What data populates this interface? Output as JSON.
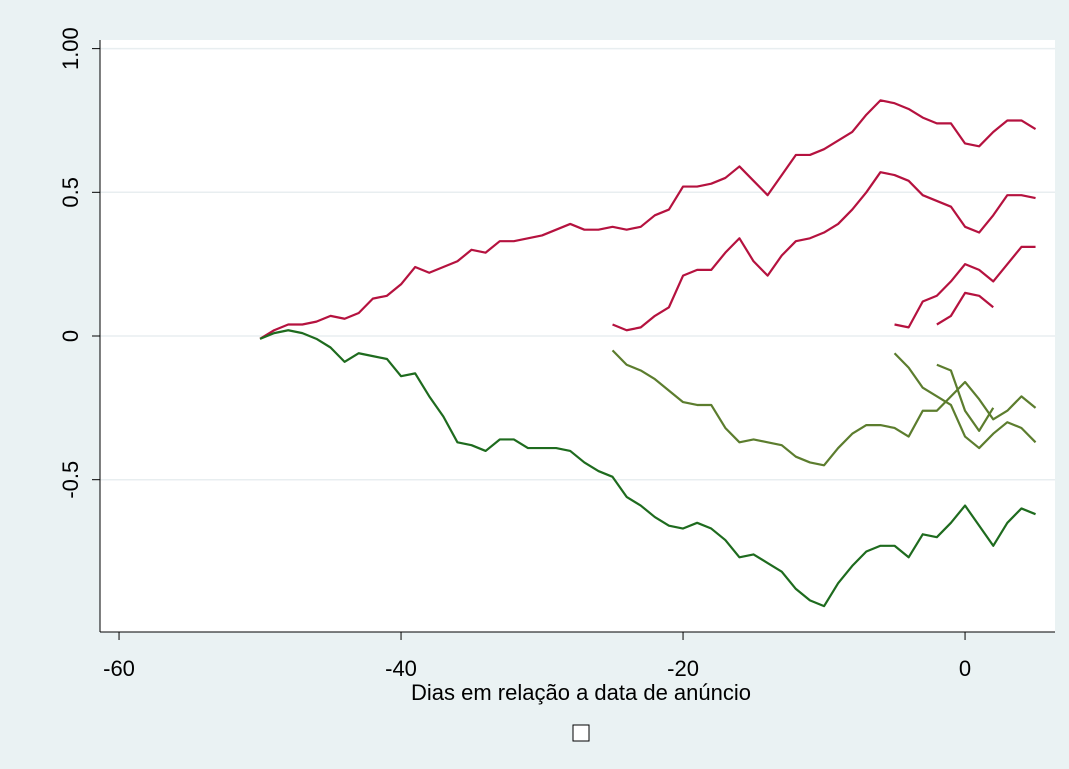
{
  "chart_data": {
    "type": "line",
    "x_label": "Dias em relação a data de anúncio",
    "xlim": [
      -61.35,
      6.38
    ],
    "ylim": [
      -1.03,
      1.03
    ],
    "xticks": [
      -60,
      -40,
      -20,
      0
    ],
    "yticks": [
      -0.5,
      0,
      0.5,
      {
        "value": 1,
        "label": "1.00"
      }
    ],
    "grid": true,
    "series": [
      {
        "color": "#b5123f",
        "x": [
          -50,
          -49,
          -48,
          -47,
          -46,
          -45,
          -44,
          -43,
          -42,
          -41,
          -40,
          -39,
          -38,
          -37,
          -36,
          -35,
          -34,
          -33,
          -32,
          -31,
          -30,
          -29,
          -28,
          -27,
          -26,
          -25,
          -24,
          -23,
          -22,
          -21,
          -20,
          -19,
          -18,
          -17,
          -16,
          -15,
          -14,
          -13,
          -12,
          -11,
          -10,
          -9,
          -8,
          -7,
          -6,
          -5,
          -4,
          -3,
          -2,
          -1,
          0,
          1,
          2,
          3,
          4,
          5
        ],
        "values": [
          -0.01,
          0.02,
          0.04,
          0.04,
          0.05,
          0.07,
          0.06,
          0.08,
          0.13,
          0.14,
          0.18,
          0.24,
          0.22,
          0.24,
          0.26,
          0.3,
          0.29,
          0.33,
          0.33,
          0.34,
          0.35,
          0.37,
          0.39,
          0.37,
          0.37,
          0.38,
          0.37,
          0.38,
          0.42,
          0.44,
          0.52,
          0.52,
          0.53,
          0.55,
          0.59,
          0.54,
          0.49,
          0.56,
          0.63,
          0.63,
          0.65,
          0.68,
          0.71,
          0.77,
          0.82,
          0.81,
          0.79,
          0.76,
          0.74,
          0.74,
          0.67,
          0.66,
          0.71,
          0.75,
          0.75,
          0.72
        ]
      },
      {
        "color": "#b5123f",
        "x": [
          -25,
          -24,
          -23,
          -22,
          -21,
          -20,
          -19,
          -18,
          -17,
          -16,
          -15,
          -14,
          -13,
          -12,
          -11,
          -10,
          -9,
          -8,
          -7,
          -6,
          -5,
          -4,
          -3,
          -2,
          -1,
          0,
          1,
          2,
          3,
          4,
          5
        ],
        "values": [
          0.04,
          0.02,
          0.03,
          0.07,
          0.1,
          0.21,
          0.23,
          0.23,
          0.29,
          0.34,
          0.26,
          0.21,
          0.28,
          0.33,
          0.34,
          0.36,
          0.39,
          0.44,
          0.5,
          0.57,
          0.56,
          0.54,
          0.49,
          0.47,
          0.45,
          0.38,
          0.36,
          0.42,
          0.49,
          0.49,
          0.48
        ]
      },
      {
        "color": "#b5123f",
        "x": [
          -5,
          -4,
          -3,
          -2,
          -1,
          0,
          1,
          2,
          3,
          4,
          5
        ],
        "values": [
          0.04,
          0.03,
          0.12,
          0.14,
          0.19,
          0.25,
          0.23,
          0.19,
          0.25,
          0.31,
          0.31
        ]
      },
      {
        "color": "#b5123f",
        "x": [
          -2,
          -1,
          0,
          1,
          2
        ],
        "values": [
          0.04,
          0.07,
          0.15,
          0.14,
          0.1
        ]
      },
      {
        "color": "#1e6b1e",
        "x": [
          -50,
          -49,
          -48,
          -47,
          -46,
          -45,
          -44,
          -43,
          -42,
          -41,
          -40,
          -39,
          -38,
          -37,
          -36,
          -35,
          -34,
          -33,
          -32,
          -31,
          -30,
          -29,
          -28,
          -27,
          -26,
          -25,
          -24,
          -23,
          -22,
          -21,
          -20,
          -19,
          -18,
          -17,
          -16,
          -15,
          -14,
          -13,
          -12,
          -11,
          -10,
          -9,
          -8,
          -7,
          -6,
          -5,
          -4,
          -3,
          -2,
          -1,
          0,
          1,
          2,
          3,
          4,
          5
        ],
        "values": [
          -0.01,
          0.01,
          0.02,
          0.01,
          -0.01,
          -0.04,
          -0.09,
          -0.06,
          -0.07,
          -0.08,
          -0.14,
          -0.13,
          -0.21,
          -0.28,
          -0.37,
          -0.38,
          -0.4,
          -0.36,
          -0.36,
          -0.39,
          -0.39,
          -0.39,
          -0.4,
          -0.44,
          -0.47,
          -0.49,
          -0.56,
          -0.59,
          -0.63,
          -0.66,
          -0.67,
          -0.65,
          -0.67,
          -0.71,
          -0.77,
          -0.76,
          -0.79,
          -0.82,
          -0.88,
          -0.92,
          -0.94,
          -0.86,
          -0.8,
          -0.75,
          -0.73,
          -0.73,
          -0.77,
          -0.69,
          -0.7,
          -0.65,
          -0.59,
          -0.66,
          -0.73,
          -0.65,
          -0.6,
          -0.62
        ]
      },
      {
        "color": "#5c7d2e",
        "x": [
          -25,
          -24,
          -23,
          -22,
          -21,
          -20,
          -19,
          -18,
          -17,
          -16,
          -15,
          -14,
          -13,
          -12,
          -11,
          -10,
          -9,
          -8,
          -7,
          -6,
          -5,
          -4,
          -3,
          -2,
          -1,
          0,
          1,
          2,
          3,
          4,
          5
        ],
        "values": [
          -0.05,
          -0.1,
          -0.12,
          -0.15,
          -0.19,
          -0.23,
          -0.24,
          -0.24,
          -0.32,
          -0.37,
          -0.36,
          -0.37,
          -0.38,
          -0.42,
          -0.44,
          -0.45,
          -0.39,
          -0.34,
          -0.31,
          -0.31,
          -0.32,
          -0.35,
          -0.26,
          -0.26,
          -0.21,
          -0.16,
          -0.22,
          -0.29,
          -0.26,
          -0.21,
          -0.25
        ]
      },
      {
        "color": "#5c7d2e",
        "x": [
          -5,
          -4,
          -3,
          -2,
          -1,
          0,
          1,
          2,
          3,
          4,
          5
        ],
        "values": [
          -0.06,
          -0.11,
          -0.18,
          -0.21,
          -0.24,
          -0.35,
          -0.39,
          -0.34,
          -0.3,
          -0.32,
          -0.37
        ]
      },
      {
        "color": "#5c7d2e",
        "x": [
          -2,
          -1,
          0,
          1,
          2
        ],
        "values": [
          -0.1,
          -0.12,
          -0.26,
          -0.33,
          -0.25
        ]
      }
    ]
  }
}
